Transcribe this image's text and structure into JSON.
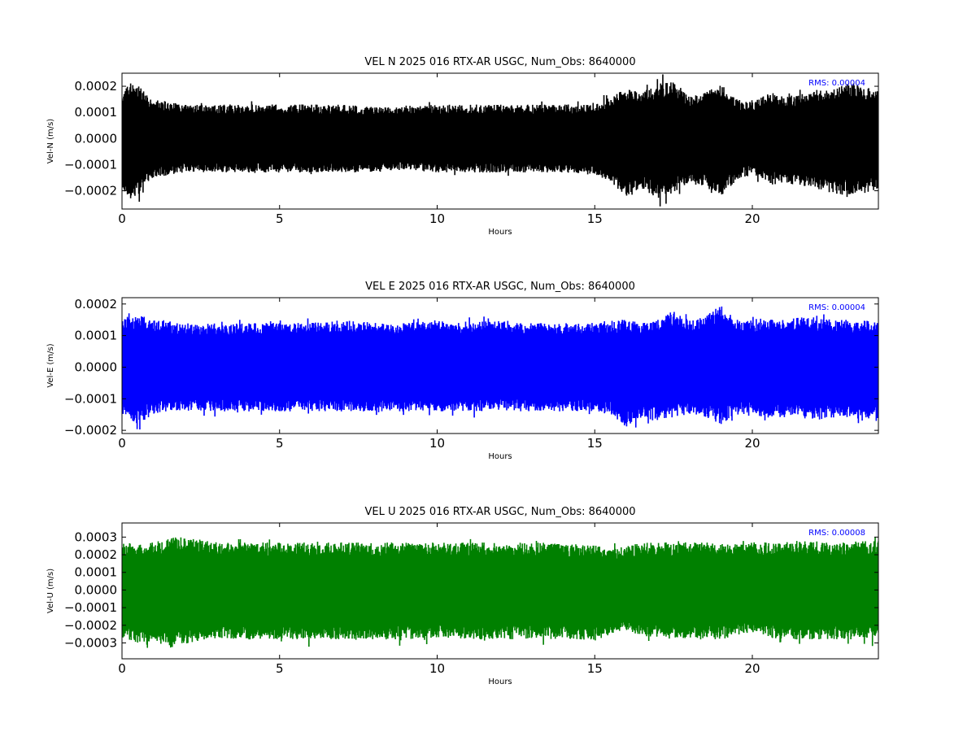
{
  "chart_data": [
    {
      "type": "line",
      "title": "VEL N 2025 016 RTX-AR  USGC, Num_Obs: 8640000",
      "xlabel": "Hours",
      "ylabel": "Vel-N (m/s)",
      "xlim": [
        0,
        24
      ],
      "ylim": [
        -0.00027,
        0.00025
      ],
      "xticks": [
        0,
        5,
        10,
        15,
        20
      ],
      "xtick_labels": [
        "0",
        "5",
        "10",
        "15",
        "20"
      ],
      "yticks": [
        0.0002,
        0.0001,
        0.0,
        -0.0001,
        -0.0002
      ],
      "ytick_labels": [
        "0.0002",
        "0.0001",
        "0.0000",
        "−0.0001",
        "−0.0002"
      ],
      "annotation": "RMS:  0.00004",
      "color": "#000000",
      "annotation_color": "#0000ff",
      "grid": false,
      "series": [
        {
          "x": [
            0,
            0.25,
            0.5,
            0.75,
            1,
            1.5,
            2,
            3,
            4,
            5,
            6,
            7,
            8,
            9,
            10,
            11,
            12,
            13,
            14,
            15,
            15.5,
            16,
            16.5,
            17,
            17.5,
            18,
            18.5,
            19,
            19.5,
            20,
            20.5,
            21,
            21.5,
            22,
            22.5,
            23,
            23.5,
            24
          ],
          "upper": [
            0.00019,
            0.00021,
            0.00022,
            0.00017,
            0.00015,
            0.00014,
            0.00013,
            0.00013,
            0.00013,
            0.00013,
            0.00013,
            0.00013,
            0.00012,
            0.00012,
            0.00013,
            0.00013,
            0.00013,
            0.00013,
            0.00013,
            0.00013,
            0.00016,
            0.00019,
            0.00018,
            0.00021,
            0.00023,
            0.00016,
            0.00018,
            0.00021,
            0.00015,
            0.00014,
            0.00017,
            0.00016,
            0.00017,
            0.00018,
            0.00019,
            0.00021,
            0.0002,
            0.00019
          ],
          "lower": [
            -0.00019,
            -0.00023,
            -0.00022,
            -0.00017,
            -0.00015,
            -0.00014,
            -0.00013,
            -0.00013,
            -0.00013,
            -0.00013,
            -0.00013,
            -0.00013,
            -0.00013,
            -0.00012,
            -0.00013,
            -0.00013,
            -0.00013,
            -0.00013,
            -0.00013,
            -0.00014,
            -0.00017,
            -0.00022,
            -0.00019,
            -0.00023,
            -0.00021,
            -0.00017,
            -0.00019,
            -0.00022,
            -0.00016,
            -0.00014,
            -0.00018,
            -0.00017,
            -0.00018,
            -0.00019,
            -0.00021,
            -0.00022,
            -0.00021,
            -0.0002
          ]
        }
      ]
    },
    {
      "type": "line",
      "title": "VEL E 2025 016 RTX-AR  USGC, Num_Obs: 8640000",
      "xlabel": "Hours",
      "ylabel": "Vel-E (m/s)",
      "xlim": [
        0,
        24
      ],
      "ylim": [
        -0.00021,
        0.00022
      ],
      "xticks": [
        0,
        5,
        10,
        15,
        20
      ],
      "xtick_labels": [
        "0",
        "5",
        "10",
        "15",
        "20"
      ],
      "yticks": [
        0.0002,
        0.0001,
        0.0,
        -0.0001,
        -0.0002
      ],
      "ytick_labels": [
        "0.0002",
        "0.0001",
        "0.0000",
        "−0.0001",
        "−0.0002"
      ],
      "annotation": "RMS:  0.00004",
      "color": "#0000ff",
      "annotation_color": "#0000ff",
      "grid": false,
      "series": [
        {
          "x": [
            0,
            0.5,
            1,
            2,
            3,
            4,
            5,
            6,
            7,
            8,
            9,
            10,
            11,
            12,
            13,
            14,
            15,
            15.5,
            16,
            16.5,
            17,
            17.5,
            18,
            18.5,
            19,
            19.5,
            20,
            20.5,
            21,
            21.5,
            22,
            22.5,
            23,
            23.5,
            24
          ],
          "upper": [
            0.00015,
            0.00017,
            0.00015,
            0.00014,
            0.00014,
            0.00014,
            0.00014,
            0.00014,
            0.00015,
            0.00014,
            0.00014,
            0.00015,
            0.00014,
            0.00015,
            0.00014,
            0.00014,
            0.00014,
            0.00015,
            0.00015,
            0.00014,
            0.00015,
            0.00018,
            0.00015,
            0.00016,
            0.0002,
            0.00015,
            0.00015,
            0.00016,
            0.00015,
            0.00016,
            0.00016,
            0.00015,
            0.00015,
            0.00015,
            0.00014
          ],
          "lower": [
            -0.00015,
            -0.00018,
            -0.00015,
            -0.00014,
            -0.00014,
            -0.00014,
            -0.00014,
            -0.00014,
            -0.00014,
            -0.00014,
            -0.00014,
            -0.00014,
            -0.00014,
            -0.00014,
            -0.00014,
            -0.00014,
            -0.00014,
            -0.00015,
            -0.00019,
            -0.00016,
            -0.00017,
            -0.00016,
            -0.00015,
            -0.00016,
            -0.00018,
            -0.00015,
            -0.00015,
            -0.00016,
            -0.00016,
            -0.00015,
            -0.00017,
            -0.00016,
            -0.00016,
            -0.00017,
            -0.00015
          ]
        }
      ]
    },
    {
      "type": "line",
      "title": "VEL U 2025 016 RTX-AR  USGC, Num_Obs: 8640000",
      "xlabel": "Hours",
      "ylabel": "Vel-U (m/s)",
      "xlim": [
        0,
        24
      ],
      "ylim": [
        -0.00039,
        0.00038
      ],
      "xticks": [
        0,
        5,
        10,
        15,
        20
      ],
      "xtick_labels": [
        "0",
        "5",
        "10",
        "15",
        "20"
      ],
      "yticks": [
        0.0003,
        0.0002,
        0.0001,
        0.0,
        -0.0001,
        -0.0002,
        -0.0003
      ],
      "ytick_labels": [
        "0.0003",
        "0.0002",
        "0.0001",
        "0.0000",
        "−0.0001",
        "−0.0002",
        "−0.0003"
      ],
      "annotation": "RMS:  0.00008",
      "color": "#008000",
      "annotation_color": "#0000ff",
      "grid": false,
      "series": [
        {
          "x": [
            0,
            0.5,
            1,
            1.5,
            2,
            3,
            4,
            5,
            6,
            7,
            8,
            9,
            10,
            11,
            12,
            13,
            14,
            15,
            15.5,
            16,
            16.5,
            17,
            17.5,
            18,
            18.5,
            19,
            19.5,
            20,
            20.5,
            21,
            21.5,
            22,
            22.5,
            23,
            23.5,
            24
          ],
          "upper": [
            0.00027,
            0.00026,
            0.00027,
            0.0003,
            0.0003,
            0.00027,
            0.00027,
            0.00027,
            0.00027,
            0.00027,
            0.00027,
            0.00027,
            0.00027,
            0.00027,
            0.00027,
            0.00027,
            0.00026,
            0.00026,
            0.00023,
            0.00025,
            0.00027,
            0.00027,
            0.00027,
            0.00027,
            0.00027,
            0.00026,
            0.00026,
            0.00027,
            0.00027,
            0.00027,
            0.00028,
            0.00027,
            0.00027,
            0.00027,
            0.00028,
            0.00028
          ],
          "lower": [
            -0.00027,
            -0.0003,
            -0.00029,
            -0.00033,
            -0.00031,
            -0.00028,
            -0.00028,
            -0.00028,
            -0.00028,
            -0.00028,
            -0.00028,
            -0.00028,
            -0.00027,
            -0.00028,
            -0.00028,
            -0.00028,
            -0.00028,
            -0.00029,
            -0.00025,
            -0.00023,
            -0.00026,
            -0.00027,
            -0.00028,
            -0.00029,
            -0.00028,
            -0.00028,
            -0.00027,
            -0.00023,
            -0.00027,
            -0.00028,
            -0.00028,
            -0.00028,
            -0.00028,
            -0.00028,
            -0.00028,
            -0.00028
          ]
        }
      ]
    }
  ]
}
